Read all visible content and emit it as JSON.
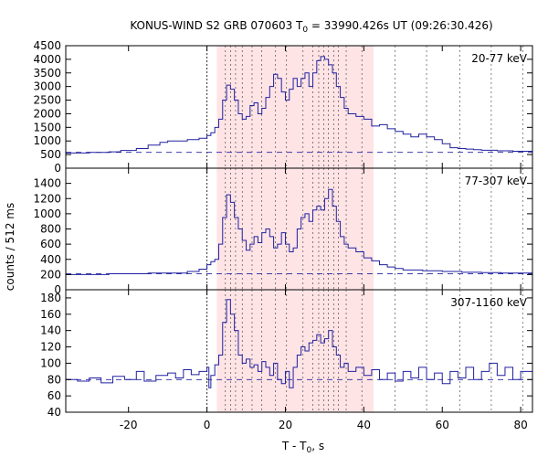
{
  "chart_data": {
    "type": "line",
    "title_prefix": "KONUS-WIND S2 GRB 070603 T",
    "title_sub": "0",
    "title_suffix": " = 33990.426s UT (09:26:30.426)",
    "xlabel_prefix": "T - T",
    "xlabel_sub": "0",
    "xlabel_suffix": ", s",
    "ylabel": "counts / 512 ms",
    "xlim": [
      -36,
      83
    ],
    "xticks": [
      -20,
      0,
      20,
      40,
      60,
      80
    ],
    "grid": false,
    "series_color": "#2020a0",
    "background_color": "#5a7a8c",
    "shade": {
      "from": 2.5,
      "to": 42.5,
      "color": "#ffe4e6"
    },
    "markers": [
      0,
      4.7,
      6.0,
      7.3,
      9.0,
      11.5,
      14.0,
      17.5,
      20.3,
      24.5,
      27.0,
      28.5,
      29.8,
      31.0,
      32.3,
      33.5,
      35.5,
      39.5,
      48.0,
      56.0,
      64.5,
      72.5,
      80.5
    ],
    "panels": [
      {
        "label": "20-77 keV",
        "ylim": [
          0,
          4500
        ],
        "yticks": [
          0,
          500,
          1000,
          1500,
          2000,
          2500,
          3000,
          3500,
          4000,
          4500
        ],
        "background": 580,
        "series": [
          {
            "x": -36,
            "y": 560
          },
          {
            "x": -30,
            "y": 580
          },
          {
            "x": -25,
            "y": 600
          },
          {
            "x": -22,
            "y": 650
          },
          {
            "x": -18,
            "y": 720
          },
          {
            "x": -15,
            "y": 850
          },
          {
            "x": -12,
            "y": 950
          },
          {
            "x": -10,
            "y": 1000
          },
          {
            "x": -7,
            "y": 1000
          },
          {
            "x": -5,
            "y": 1050
          },
          {
            "x": -2,
            "y": 1100
          },
          {
            "x": 0,
            "y": 1200
          },
          {
            "x": 1,
            "y": 1300
          },
          {
            "x": 2,
            "y": 1500
          },
          {
            "x": 3,
            "y": 1800
          },
          {
            "x": 4,
            "y": 2500
          },
          {
            "x": 5,
            "y": 3050
          },
          {
            "x": 6,
            "y": 2900
          },
          {
            "x": 7,
            "y": 2500
          },
          {
            "x": 8,
            "y": 2000
          },
          {
            "x": 9,
            "y": 1800
          },
          {
            "x": 10,
            "y": 1900
          },
          {
            "x": 11,
            "y": 2300
          },
          {
            "x": 12,
            "y": 2400
          },
          {
            "x": 13,
            "y": 2000
          },
          {
            "x": 14,
            "y": 2200
          },
          {
            "x": 15,
            "y": 2600
          },
          {
            "x": 16,
            "y": 3000
          },
          {
            "x": 17,
            "y": 3450
          },
          {
            "x": 18,
            "y": 3300
          },
          {
            "x": 19,
            "y": 2800
          },
          {
            "x": 20,
            "y": 2500
          },
          {
            "x": 21,
            "y": 2900
          },
          {
            "x": 22,
            "y": 3300
          },
          {
            "x": 23,
            "y": 3000
          },
          {
            "x": 24,
            "y": 3300
          },
          {
            "x": 25,
            "y": 3500
          },
          {
            "x": 26,
            "y": 3000
          },
          {
            "x": 27,
            "y": 3500
          },
          {
            "x": 28,
            "y": 3950
          },
          {
            "x": 29,
            "y": 4100
          },
          {
            "x": 30,
            "y": 4000
          },
          {
            "x": 31,
            "y": 3800
          },
          {
            "x": 32,
            "y": 3500
          },
          {
            "x": 33,
            "y": 3000
          },
          {
            "x": 34,
            "y": 2600
          },
          {
            "x": 35,
            "y": 2200
          },
          {
            "x": 36,
            "y": 2000
          },
          {
            "x": 38,
            "y": 1900
          },
          {
            "x": 40,
            "y": 1800
          },
          {
            "x": 42,
            "y": 1550
          },
          {
            "x": 44,
            "y": 1600
          },
          {
            "x": 46,
            "y": 1450
          },
          {
            "x": 48,
            "y": 1350
          },
          {
            "x": 50,
            "y": 1250
          },
          {
            "x": 52,
            "y": 1150
          },
          {
            "x": 54,
            "y": 1250
          },
          {
            "x": 56,
            "y": 1150
          },
          {
            "x": 58,
            "y": 1050
          },
          {
            "x": 60,
            "y": 900
          },
          {
            "x": 62,
            "y": 750
          },
          {
            "x": 64,
            "y": 720
          },
          {
            "x": 66,
            "y": 700
          },
          {
            "x": 68,
            "y": 680
          },
          {
            "x": 70,
            "y": 660
          },
          {
            "x": 74,
            "y": 640
          },
          {
            "x": 78,
            "y": 620
          },
          {
            "x": 83,
            "y": 590
          }
        ]
      },
      {
        "label": "77-307 keV",
        "ylim": [
          0,
          1600
        ],
        "yticks": [
          0,
          200,
          400,
          600,
          800,
          1000,
          1200,
          1400
        ],
        "background": 210,
        "series": [
          {
            "x": -36,
            "y": 200
          },
          {
            "x": -25,
            "y": 210
          },
          {
            "x": -15,
            "y": 220
          },
          {
            "x": -5,
            "y": 240
          },
          {
            "x": -2,
            "y": 270
          },
          {
            "x": 0,
            "y": 330
          },
          {
            "x": 1,
            "y": 370
          },
          {
            "x": 2,
            "y": 400
          },
          {
            "x": 3,
            "y": 600
          },
          {
            "x": 4,
            "y": 950
          },
          {
            "x": 5,
            "y": 1250
          },
          {
            "x": 6,
            "y": 1150
          },
          {
            "x": 7,
            "y": 950
          },
          {
            "x": 8,
            "y": 800
          },
          {
            "x": 9,
            "y": 650
          },
          {
            "x": 10,
            "y": 520
          },
          {
            "x": 11,
            "y": 600
          },
          {
            "x": 12,
            "y": 700
          },
          {
            "x": 13,
            "y": 620
          },
          {
            "x": 14,
            "y": 750
          },
          {
            "x": 15,
            "y": 800
          },
          {
            "x": 16,
            "y": 700
          },
          {
            "x": 17,
            "y": 550
          },
          {
            "x": 18,
            "y": 600
          },
          {
            "x": 19,
            "y": 750
          },
          {
            "x": 20,
            "y": 600
          },
          {
            "x": 21,
            "y": 500
          },
          {
            "x": 22,
            "y": 550
          },
          {
            "x": 23,
            "y": 800
          },
          {
            "x": 24,
            "y": 950
          },
          {
            "x": 25,
            "y": 1000
          },
          {
            "x": 26,
            "y": 900
          },
          {
            "x": 27,
            "y": 1050
          },
          {
            "x": 28,
            "y": 1100
          },
          {
            "x": 29,
            "y": 1050
          },
          {
            "x": 30,
            "y": 1200
          },
          {
            "x": 31,
            "y": 1320
          },
          {
            "x": 32,
            "y": 1100
          },
          {
            "x": 33,
            "y": 900
          },
          {
            "x": 34,
            "y": 700
          },
          {
            "x": 35,
            "y": 600
          },
          {
            "x": 36,
            "y": 550
          },
          {
            "x": 38,
            "y": 500
          },
          {
            "x": 40,
            "y": 420
          },
          {
            "x": 42,
            "y": 380
          },
          {
            "x": 44,
            "y": 330
          },
          {
            "x": 46,
            "y": 300
          },
          {
            "x": 48,
            "y": 280
          },
          {
            "x": 50,
            "y": 260
          },
          {
            "x": 55,
            "y": 250
          },
          {
            "x": 60,
            "y": 240
          },
          {
            "x": 65,
            "y": 230
          },
          {
            "x": 70,
            "y": 225
          },
          {
            "x": 75,
            "y": 220
          },
          {
            "x": 83,
            "y": 210
          }
        ]
      },
      {
        "label": "307-1160 keV",
        "ylim": [
          40,
          190
        ],
        "yticks": [
          40,
          60,
          80,
          100,
          120,
          140,
          160,
          180
        ],
        "background": 80,
        "series": [
          {
            "x": -36,
            "y": 80
          },
          {
            "x": -33,
            "y": 78
          },
          {
            "x": -30,
            "y": 82
          },
          {
            "x": -27,
            "y": 76
          },
          {
            "x": -24,
            "y": 84
          },
          {
            "x": -21,
            "y": 80
          },
          {
            "x": -18,
            "y": 90
          },
          {
            "x": -16,
            "y": 78
          },
          {
            "x": -13,
            "y": 85
          },
          {
            "x": -10,
            "y": 88
          },
          {
            "x": -8,
            "y": 82
          },
          {
            "x": -6,
            "y": 92
          },
          {
            "x": -4,
            "y": 86
          },
          {
            "x": -2,
            "y": 90
          },
          {
            "x": 0,
            "y": 95
          },
          {
            "x": 0.5,
            "y": 70
          },
          {
            "x": 1,
            "y": 85
          },
          {
            "x": 2,
            "y": 98
          },
          {
            "x": 3,
            "y": 110
          },
          {
            "x": 4,
            "y": 150
          },
          {
            "x": 5,
            "y": 178
          },
          {
            "x": 6,
            "y": 160
          },
          {
            "x": 7,
            "y": 140
          },
          {
            "x": 8,
            "y": 110
          },
          {
            "x": 9,
            "y": 100
          },
          {
            "x": 10,
            "y": 105
          },
          {
            "x": 11,
            "y": 95
          },
          {
            "x": 12,
            "y": 98
          },
          {
            "x": 13,
            "y": 90
          },
          {
            "x": 14,
            "y": 102
          },
          {
            "x": 15,
            "y": 95
          },
          {
            "x": 16,
            "y": 85
          },
          {
            "x": 17,
            "y": 100
          },
          {
            "x": 18,
            "y": 80
          },
          {
            "x": 19,
            "y": 75
          },
          {
            "x": 20,
            "y": 90
          },
          {
            "x": 21,
            "y": 70
          },
          {
            "x": 22,
            "y": 95
          },
          {
            "x": 23,
            "y": 110
          },
          {
            "x": 24,
            "y": 120
          },
          {
            "x": 25,
            "y": 115
          },
          {
            "x": 26,
            "y": 125
          },
          {
            "x": 27,
            "y": 128
          },
          {
            "x": 28,
            "y": 135
          },
          {
            "x": 29,
            "y": 125
          },
          {
            "x": 30,
            "y": 130
          },
          {
            "x": 31,
            "y": 140
          },
          {
            "x": 32,
            "y": 120
          },
          {
            "x": 33,
            "y": 110
          },
          {
            "x": 34,
            "y": 95
          },
          {
            "x": 35,
            "y": 100
          },
          {
            "x": 36,
            "y": 90
          },
          {
            "x": 38,
            "y": 95
          },
          {
            "x": 40,
            "y": 85
          },
          {
            "x": 42,
            "y": 92
          },
          {
            "x": 44,
            "y": 80
          },
          {
            "x": 46,
            "y": 88
          },
          {
            "x": 48,
            "y": 78
          },
          {
            "x": 50,
            "y": 90
          },
          {
            "x": 52,
            "y": 82
          },
          {
            "x": 54,
            "y": 95
          },
          {
            "x": 56,
            "y": 80
          },
          {
            "x": 58,
            "y": 88
          },
          {
            "x": 60,
            "y": 75
          },
          {
            "x": 62,
            "y": 90
          },
          {
            "x": 64,
            "y": 82
          },
          {
            "x": 66,
            "y": 95
          },
          {
            "x": 68,
            "y": 80
          },
          {
            "x": 70,
            "y": 90
          },
          {
            "x": 72,
            "y": 100
          },
          {
            "x": 74,
            "y": 85
          },
          {
            "x": 76,
            "y": 95
          },
          {
            "x": 78,
            "y": 80
          },
          {
            "x": 80,
            "y": 90
          },
          {
            "x": 83,
            "y": 100
          }
        ]
      }
    ]
  }
}
